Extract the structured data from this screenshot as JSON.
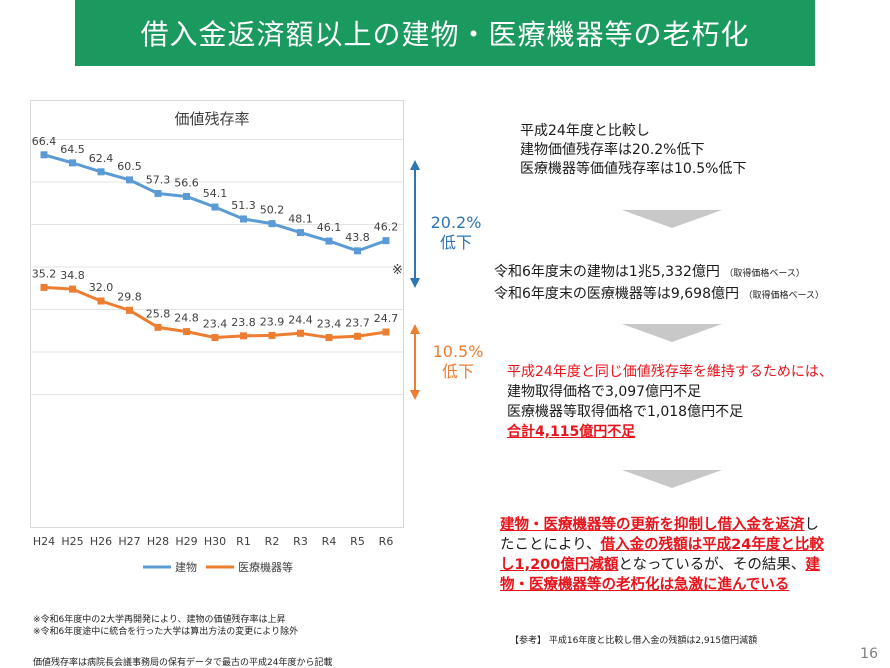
{
  "slide": {
    "title": "借入金返済額以上の建物・医療機器等の老朽化",
    "page_number": "16"
  },
  "chart_data": {
    "type": "line",
    "title": "価値残存率",
    "categories": [
      "H24",
      "H25",
      "H26",
      "H27",
      "H28",
      "H29",
      "H30",
      "R1",
      "R2",
      "R3",
      "R4",
      "R5",
      "R6"
    ],
    "series": [
      {
        "name": "建物",
        "color": "#5b9bd5",
        "values": [
          66.4,
          64.5,
          62.4,
          60.5,
          57.3,
          56.6,
          54.1,
          51.3,
          50.2,
          48.1,
          46.1,
          43.8,
          46.2
        ],
        "labels": [
          "66.4",
          "64.5",
          "62.4",
          "60.5",
          "57.3",
          "56.6",
          "54.1",
          "51.3",
          "50.2",
          "48.1",
          "46.1",
          "43.8",
          "46.2"
        ]
      },
      {
        "name": "医療機器等",
        "color": "#ed7d31",
        "values": [
          35.2,
          34.8,
          32.0,
          29.8,
          25.8,
          24.8,
          23.4,
          23.8,
          23.9,
          24.4,
          23.4,
          23.7,
          24.7
        ],
        "labels": [
          "35.2",
          "34.8",
          "32.0",
          "29.8",
          "25.8",
          "24.8",
          "23.4",
          "23.8",
          "23.9",
          "24.4",
          "23.4",
          "23.7",
          "24.7"
        ]
      }
    ],
    "ylim": [
      0,
      80
    ],
    "annotations": {
      "building_change_pct": "20.2%",
      "building_change_label": "低下",
      "equipment_change_pct": "10.5%",
      "equipment_change_label": "低下",
      "last_point_mark": "※",
      "building_color": "#2e75b6",
      "equipment_color": "#ed7d31"
    }
  },
  "right_panel": {
    "block1": {
      "lines": [
        "平成24年度と比較し",
        "建物価値残存率は20.2%低下",
        "医療機器等価値残存率は10.5%低下"
      ]
    },
    "block2": {
      "line1_main": "令和6年度末の建物は1兆5,332億円",
      "line1_note": "（取得価格ベース）",
      "line2_main": "令和6年度末の医療機器等は9,698億円",
      "line2_note": "（取得価格ベース）"
    },
    "block3": {
      "heading": "平成24年度と同じ価値残存率を維持するためには、",
      "line1": "建物取得価格で3,097億円不足",
      "line2": "医療機器等取得価格で1,018億円不足",
      "total": "合計4,115億円不足"
    },
    "block4": {
      "line1_a": "建物・医療機器等の更新を抑制し借入金を返済",
      "line1_b": "し",
      "line2_a": "たことにより、",
      "line2_b": "借入金の残額は平成24年度と比較",
      "line3_a": "し1,200億円減額",
      "line3_b": "となっているが、その結果、",
      "line3_c": "建",
      "line4": "物・医療機器等の老朽化は急激に進んでいる"
    },
    "reference_note": "【参考】 平成16年度と比較し借入金の残額は2,915億円減額"
  },
  "footnotes": {
    "note1": "※令和6年度中の2大学再開発により、建物の価値残存率は上昇",
    "note2": "※令和6年度途中に統合を行った大学は算出方法の変更により除外",
    "source": "価値残存率は病院長会議事務局の保有データで最古の平成24年度から記載"
  },
  "colors": {
    "title_bg": "#1b9a60",
    "accent_red": "#e8141c",
    "arrow_gray": "#c8c8c8"
  }
}
